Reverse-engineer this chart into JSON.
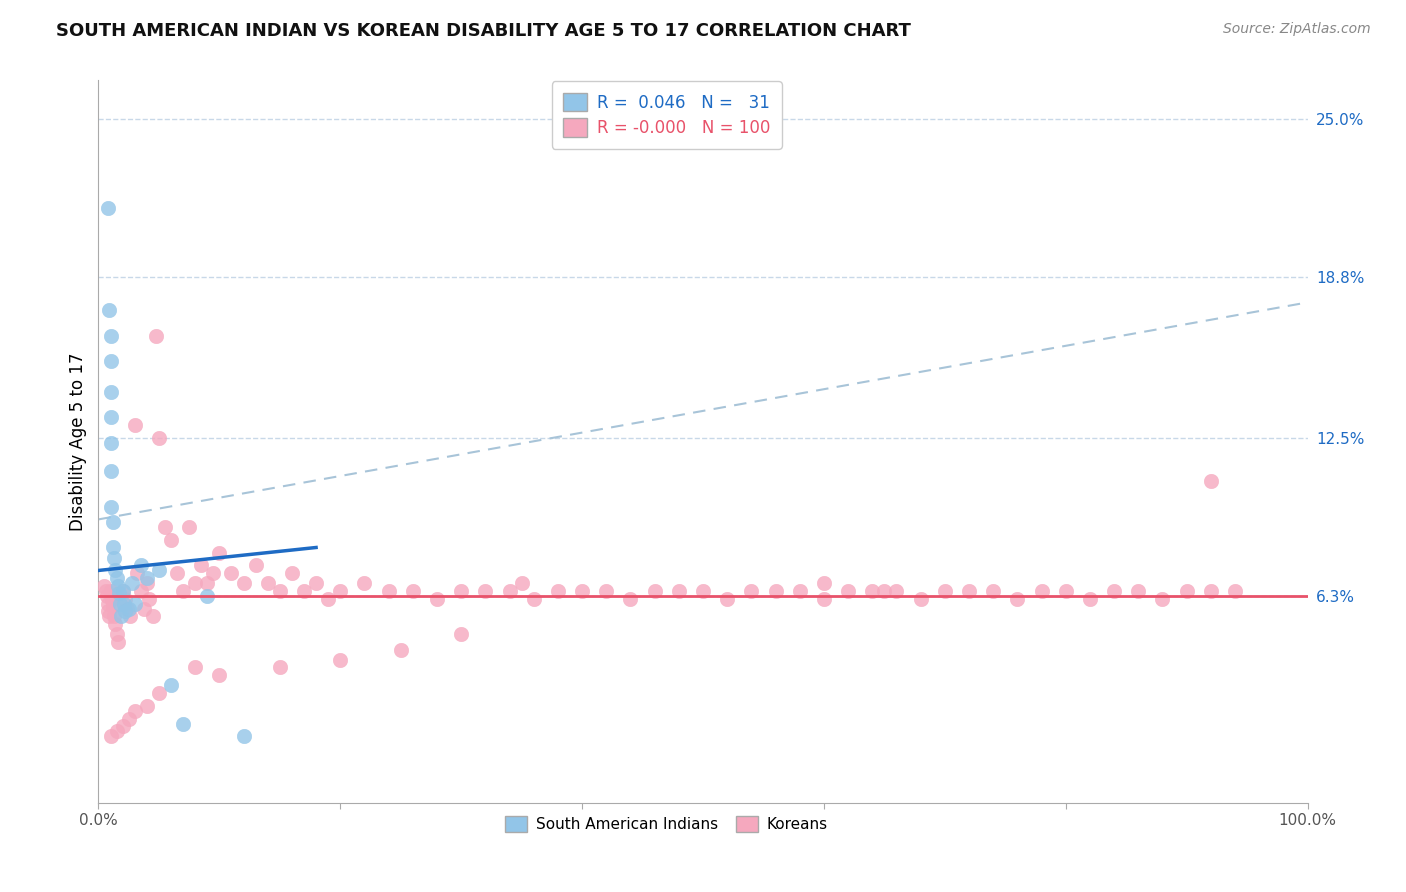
{
  "title": "SOUTH AMERICAN INDIAN VS KOREAN DISABILITY AGE 5 TO 17 CORRELATION CHART",
  "source": "Source: ZipAtlas.com",
  "ylabel": "Disability Age 5 to 17",
  "xlim": [
    0,
    1.0
  ],
  "ylim": [
    -0.018,
    0.265
  ],
  "xtick_vals": [
    0.0,
    0.2,
    0.4,
    0.6,
    0.8,
    1.0
  ],
  "xticklabels": [
    "0.0%",
    "",
    "",
    "",
    "",
    "100.0%"
  ],
  "ytick_right_labels": [
    "25.0%",
    "18.8%",
    "12.5%",
    "6.3%"
  ],
  "ytick_right_values": [
    0.25,
    0.188,
    0.125,
    0.063
  ],
  "blue_color": "#92C5E8",
  "pink_color": "#F5A8BE",
  "blue_line_color": "#1E6BC4",
  "pink_line_color": "#E8526A",
  "dashed_line_color": "#A8C4D8",
  "grid_color": "#C8D8E8",
  "background_color": "#FFFFFF",
  "blue_line_x": [
    0.0,
    0.18
  ],
  "blue_line_y": [
    0.073,
    0.082
  ],
  "pink_line_x": [
    0.0,
    1.0
  ],
  "pink_line_y": [
    0.063,
    0.063
  ],
  "dash_line_x": [
    0.0,
    1.0
  ],
  "dash_line_y": [
    0.093,
    0.178
  ],
  "south_american_x": [
    0.008,
    0.009,
    0.01,
    0.01,
    0.01,
    0.01,
    0.01,
    0.01,
    0.01,
    0.012,
    0.012,
    0.013,
    0.014,
    0.015,
    0.016,
    0.017,
    0.018,
    0.019,
    0.02,
    0.021,
    0.022,
    0.025,
    0.028,
    0.03,
    0.035,
    0.04,
    0.05,
    0.06,
    0.07,
    0.09,
    0.12
  ],
  "south_american_y": [
    0.215,
    0.175,
    0.165,
    0.155,
    0.143,
    0.133,
    0.123,
    0.112,
    0.098,
    0.092,
    0.082,
    0.078,
    0.073,
    0.07,
    0.067,
    0.064,
    0.06,
    0.055,
    0.065,
    0.06,
    0.057,
    0.058,
    0.068,
    0.06,
    0.075,
    0.07,
    0.073,
    0.028,
    0.013,
    0.063,
    0.008
  ],
  "korean_x": [
    0.005,
    0.006,
    0.007,
    0.008,
    0.008,
    0.009,
    0.01,
    0.011,
    0.012,
    0.013,
    0.014,
    0.015,
    0.016,
    0.02,
    0.022,
    0.024,
    0.026,
    0.03,
    0.032,
    0.035,
    0.038,
    0.04,
    0.042,
    0.045,
    0.048,
    0.05,
    0.055,
    0.06,
    0.065,
    0.07,
    0.075,
    0.08,
    0.085,
    0.09,
    0.095,
    0.1,
    0.11,
    0.12,
    0.13,
    0.14,
    0.15,
    0.16,
    0.17,
    0.18,
    0.19,
    0.2,
    0.22,
    0.24,
    0.26,
    0.28,
    0.3,
    0.32,
    0.34,
    0.36,
    0.38,
    0.4,
    0.42,
    0.44,
    0.46,
    0.48,
    0.5,
    0.52,
    0.54,
    0.56,
    0.58,
    0.6,
    0.62,
    0.64,
    0.66,
    0.68,
    0.7,
    0.72,
    0.74,
    0.76,
    0.78,
    0.8,
    0.82,
    0.84,
    0.86,
    0.88,
    0.9,
    0.92,
    0.94,
    0.6,
    0.65,
    0.35,
    0.3,
    0.25,
    0.2,
    0.15,
    0.1,
    0.08,
    0.05,
    0.04,
    0.03,
    0.025,
    0.02,
    0.015,
    0.01,
    0.92
  ],
  "korean_y": [
    0.067,
    0.065,
    0.063,
    0.06,
    0.057,
    0.055,
    0.065,
    0.062,
    0.059,
    0.055,
    0.052,
    0.048,
    0.045,
    0.065,
    0.062,
    0.058,
    0.055,
    0.13,
    0.072,
    0.065,
    0.058,
    0.068,
    0.062,
    0.055,
    0.165,
    0.125,
    0.09,
    0.085,
    0.072,
    0.065,
    0.09,
    0.068,
    0.075,
    0.068,
    0.072,
    0.08,
    0.072,
    0.068,
    0.075,
    0.068,
    0.065,
    0.072,
    0.065,
    0.068,
    0.062,
    0.065,
    0.068,
    0.065,
    0.065,
    0.062,
    0.065,
    0.065,
    0.065,
    0.062,
    0.065,
    0.065,
    0.065,
    0.062,
    0.065,
    0.065,
    0.065,
    0.062,
    0.065,
    0.065,
    0.065,
    0.062,
    0.065,
    0.065,
    0.065,
    0.062,
    0.065,
    0.065,
    0.065,
    0.062,
    0.065,
    0.065,
    0.062,
    0.065,
    0.065,
    0.062,
    0.065,
    0.065,
    0.065,
    0.068,
    0.065,
    0.068,
    0.048,
    0.042,
    0.038,
    0.035,
    0.032,
    0.035,
    0.025,
    0.02,
    0.018,
    0.015,
    0.012,
    0.01,
    0.008,
    0.108
  ]
}
